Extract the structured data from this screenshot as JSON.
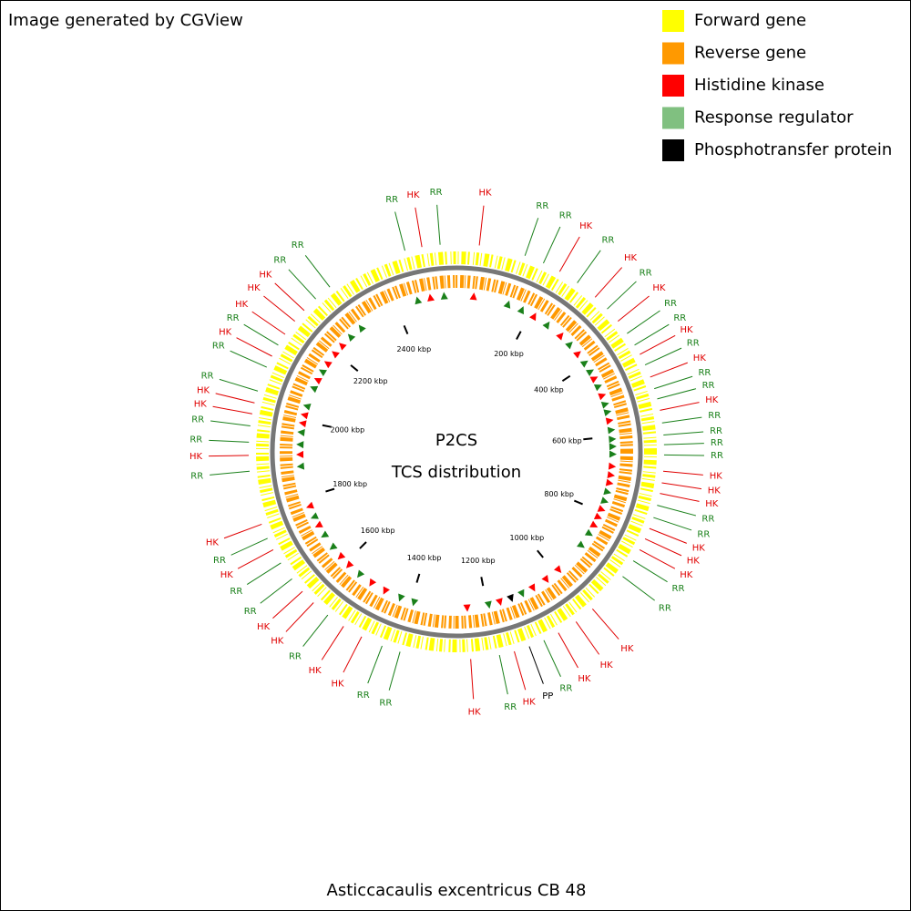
{
  "header": {
    "credit": "Image generated by CGView"
  },
  "legend": [
    {
      "name": "Forward gene",
      "color": "#ffff00"
    },
    {
      "name": "Reverse gene",
      "color": "#ff9900"
    },
    {
      "name": "Histidine kinase",
      "color": "#ff0000",
      "code": "HK",
      "text_color": "#e00000"
    },
    {
      "name": "Response regulator",
      "color": "#80c080",
      "code": "RR",
      "text_color": "#1a801a"
    },
    {
      "name": "Phosphotransfer protein",
      "color": "#000000",
      "code": "PP",
      "text_color": "#000000"
    }
  ],
  "map": {
    "title": "P2CS",
    "subtitle": "TCS distribution",
    "xlim": [
      0,
      2560
    ],
    "xticks": [
      {
        "value": 200,
        "label": "200 kbp"
      },
      {
        "value": 400,
        "label": "400 kbp"
      },
      {
        "value": 600,
        "label": "600 kbp"
      },
      {
        "value": 800,
        "label": "800 kbp"
      },
      {
        "value": 1000,
        "label": "1000 kbp"
      },
      {
        "value": 1200,
        "label": "1200 kbp"
      },
      {
        "value": 1400,
        "label": "1400 kbp"
      },
      {
        "value": 1600,
        "label": "1600 kbp"
      },
      {
        "value": 1800,
        "label": "1800 kbp"
      },
      {
        "value": 2000,
        "label": "2000 kbp"
      },
      {
        "value": 2200,
        "label": "2200 kbp"
      },
      {
        "value": 2400,
        "label": "2400 kbp"
      }
    ],
    "features": [
      {
        "label": "RR",
        "position_kbp": 2458
      },
      {
        "label": "HK",
        "position_kbp": 2492
      },
      {
        "label": "RR",
        "position_kbp": 2528
      },
      {
        "label": "HK",
        "position_kbp": 45
      },
      {
        "label": "RR",
        "position_kbp": 137
      },
      {
        "label": "RR",
        "position_kbp": 176
      },
      {
        "label": "HK",
        "position_kbp": 212
      },
      {
        "label": "RR",
        "position_kbp": 253
      },
      {
        "label": "HK",
        "position_kbp": 298
      },
      {
        "label": "RR",
        "position_kbp": 331
      },
      {
        "label": "HK",
        "position_kbp": 363
      },
      {
        "label": "RR",
        "position_kbp": 393
      },
      {
        "label": "RR",
        "position_kbp": 420
      },
      {
        "label": "HK",
        "position_kbp": 441
      },
      {
        "label": "RR",
        "position_kbp": 464
      },
      {
        "label": "HK",
        "position_kbp": 490
      },
      {
        "label": "RR",
        "position_kbp": 514
      },
      {
        "label": "RR",
        "position_kbp": 535
      },
      {
        "label": "HK",
        "position_kbp": 558
      },
      {
        "label": "RR",
        "position_kbp": 583
      },
      {
        "label": "RR",
        "position_kbp": 607
      },
      {
        "label": "RR",
        "position_kbp": 626
      },
      {
        "label": "RR",
        "position_kbp": 646
      },
      {
        "label": "HK",
        "position_kbp": 678
      },
      {
        "label": "HK",
        "position_kbp": 701
      },
      {
        "label": "HK",
        "position_kbp": 722
      },
      {
        "label": "RR",
        "position_kbp": 746
      },
      {
        "label": "RR",
        "position_kbp": 771
      },
      {
        "label": "HK",
        "position_kbp": 794
      },
      {
        "label": "HK",
        "position_kbp": 816
      },
      {
        "label": "HK",
        "position_kbp": 840
      },
      {
        "label": "RR",
        "position_kbp": 865
      },
      {
        "label": "RR",
        "position_kbp": 902
      },
      {
        "label": "HK",
        "position_kbp": 989
      },
      {
        "label": "HK",
        "position_kbp": 1030
      },
      {
        "label": "HK",
        "position_kbp": 1071
      },
      {
        "label": "RR",
        "position_kbp": 1103
      },
      {
        "label": "PP",
        "position_kbp": 1134
      },
      {
        "label": "HK",
        "position_kbp": 1165
      },
      {
        "label": "RR",
        "position_kbp": 1195
      },
      {
        "label": "HK",
        "position_kbp": 1252
      },
      {
        "label": "RR",
        "position_kbp": 1392
      },
      {
        "label": "RR",
        "position_kbp": 1429
      },
      {
        "label": "HK",
        "position_kbp": 1473
      },
      {
        "label": "HK",
        "position_kbp": 1514
      },
      {
        "label": "RR",
        "position_kbp": 1552
      },
      {
        "label": "HK",
        "position_kbp": 1589
      },
      {
        "label": "HK",
        "position_kbp": 1620
      },
      {
        "label": "RR",
        "position_kbp": 1652
      },
      {
        "label": "RR",
        "position_kbp": 1690
      },
      {
        "label": "HK",
        "position_kbp": 1720
      },
      {
        "label": "RR",
        "position_kbp": 1745
      },
      {
        "label": "HK",
        "position_kbp": 1775
      },
      {
        "label": "RR",
        "position_kbp": 1882
      },
      {
        "label": "HK",
        "position_kbp": 1913
      },
      {
        "label": "RR",
        "position_kbp": 1939
      },
      {
        "label": "RR",
        "position_kbp": 1971
      },
      {
        "label": "HK",
        "position_kbp": 1995
      },
      {
        "label": "HK",
        "position_kbp": 2017
      },
      {
        "label": "RR",
        "position_kbp": 2041
      },
      {
        "label": "RR",
        "position_kbp": 2091
      },
      {
        "label": "HK",
        "position_kbp": 2115
      },
      {
        "label": "RR",
        "position_kbp": 2140
      },
      {
        "label": "HK",
        "position_kbp": 2165
      },
      {
        "label": "HK",
        "position_kbp": 2197
      },
      {
        "label": "HK",
        "position_kbp": 2225
      },
      {
        "label": "RR",
        "position_kbp": 2257
      },
      {
        "label": "RR",
        "position_kbp": 2293
      }
    ]
  },
  "footer": {
    "organism": "Asticcacaulis excentricus CB 48"
  }
}
